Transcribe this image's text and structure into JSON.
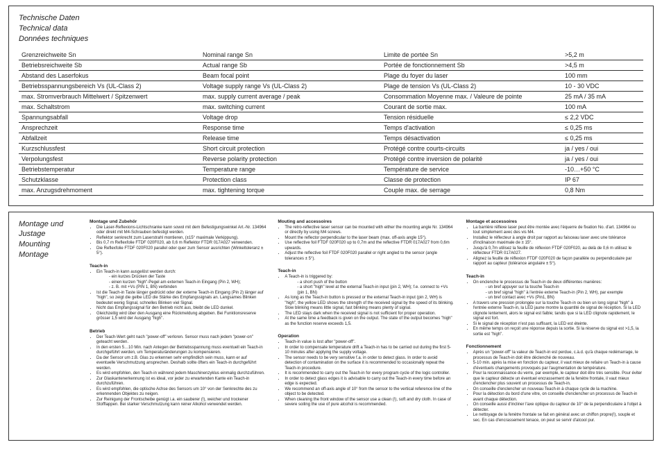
{
  "section1": {
    "heading_de": "Technische Daten",
    "heading_en": "Technical data",
    "heading_fr": "Données techniques",
    "rows": [
      {
        "de": "Grenzreichweite Sn",
        "en": "Nominal range Sn",
        "fr": "Limite de portée Sn",
        "val": ">5,2 m"
      },
      {
        "de": "Betriebsreichweite Sb",
        "en": "Actual range Sb",
        "fr": "Portée de fonctionnement Sb",
        "val": ">4,5 m"
      },
      {
        "de": "Abstand des Laserfokus",
        "en": "Beam focal point",
        "fr": "Plage du foyer du laser",
        "val": "100 mm"
      },
      {
        "de": "Betriebsspannungsbereich Vs (UL-Class 2)",
        "en": "Voltage supply range Vs (UL-Class 2)",
        "fr": "Plage de tension Vs (UL-Class 2)",
        "val": "10 - 30 VDC"
      },
      {
        "de": "max. Stromverbrauch Mittelwert / Spitzenwert",
        "en": "max. supply current average / peak",
        "fr": "Consommation Moyenne max. / Valeure de pointe",
        "val": "25 mA / 35 mA"
      },
      {
        "de": "max. Schaltstrom",
        "en": "max. switching current",
        "fr": "Courant de sortie max.",
        "val": "100 mA"
      },
      {
        "de": "Spannungsabfall",
        "en": "Voltage drop",
        "fr": "Tension résiduelle",
        "val": "≤ 2,2 VDC"
      },
      {
        "de": "Ansprechzeit",
        "en": "Response time",
        "fr": "Temps d'activation",
        "val": "≤ 0,25 ms"
      },
      {
        "de": "Abfallzeit",
        "en": "Release time",
        "fr": "Temps désactivation",
        "val": "≤ 0,25 ms"
      },
      {
        "de": "Kurzschlussfest",
        "en": "Short circuit protection",
        "fr": "Protégé contre courts-circuits",
        "val": "ja / yes / oui"
      },
      {
        "de": "Verpolungsfest",
        "en": "Reverse polarity protection",
        "fr": "Protégé contre inversion de polarité",
        "val": "ja / yes / oui"
      },
      {
        "de": "Betriebstemperatur",
        "en": "Temperature range",
        "fr": "Température de service",
        "val": "-10…+50 °C"
      },
      {
        "de": "Schutzklasse",
        "en": "Protection class",
        "fr": "Classe de protection",
        "val": "IP 67"
      },
      {
        "de": "max. Anzugsdrehmoment",
        "en": "max. tightening torque",
        "fr": "Couple max. de serrage",
        "val": "0,8 Nm"
      }
    ]
  },
  "section2": {
    "heading_de": "Montage und Justage",
    "heading_en": "Mounting",
    "heading_fr": "Montage",
    "de": {
      "b1_title": "Montage und Zubehör",
      "b1": [
        "Die Laser-Reflexions-Lichtschranke kann sowol mit dem Befestigungswinkel Art.-Nr. 134964 oder direkt mit M4-Schrauben befestigt werden.",
        "Reflektor senkrecht zum Laserstrahl montieren, (±15° maximale Verkippung).",
        "Bis 0,7 m Reflexfolie FTDF 020F020, ab 0,6 m Reflektor FTDR 017A027 verwenden.",
        "Die Reflexfolie FTDF 020F020 parallel oder quer zum Sensor ausrichten (Winkeltoleranz ± 5°)."
      ],
      "b2_title": "Teach-in",
      "b2_intro": "Ein Teach-in kann ausgelöst werden durch:",
      "b2_sub": [
        "ein kurzes Drücken der Taste",
        "einen kurzen \"high\"-Pegel am externen Teach-in Eingang (Pin 2, WH);",
        "z. B. mit +Vs (PIN 1, BN) verbinden"
      ],
      "b2_rest": [
        "Ist die Teach-in Taste länger gedrückt oder der externe Teach-in Eingang (Pin 2) länger auf \"high\", so zeigt die gelbe LED die Stärke des Empfangssignals an. Langsames Blinken bedeutet wenig Signal, schnelles Blinken viel Signal.",
        "Nicht das Empfangssignal für den Betrieb nicht aus, bleibt die LED dunkel.",
        "Gleichzeitig wird über den Ausgang eine Rückmeldung abgeben. Bei Funktionsreserve grösser 1,5 wird der Ausgang \"high\"."
      ],
      "b3_title": "Betrieb",
      "b3": [
        "Der Teach-Wert geht nach \"power-off\" verloren. Sensor muss nach jedem \"power-on\" geteacht werden.",
        "In den ersten 5…10 Min. nach Anlegen der Betriebsspannung muss eventuell ein Teach-in durchgeführt werden, um Temperaturänderungen zu kompensieren.",
        "Da der Sensor um z.B. Glas zu erkennen sehr empfindlich sein muss, kann er auf eventuelle Verschmutzung ansprechen. Deshalb sollte öfters ein Teach-in durchgeführt werden.",
        "Es wird empfohlen, den Teach-in während jedem Maschinenzyklus einmalig durchzuführen.",
        "Zur Glaskantenerkennung ist es ideal, vor jeder zu erwartenden Kante ein Teach-in durchzuführen.",
        "Es wird empfohlen, die optische Achse des Sensors um 10° von der Senkrechte des zu erkennenden Objektes zu neigen.",
        "Zur Reinigung der Frontscheibe genügt i.a. ein sauberer (!), weicher und trockener Stofflappen. Bei starker Verschmutzung kann reiner Alkohol verwendet werden."
      ]
    },
    "en": {
      "b1_title": "Mouting and accessoires",
      "b1": [
        "The retro-reflective laser sensor can be mounted with either the mounting angle Nr. 134964 or directly by using M4 screws.",
        "Mount the reflector perpendicular to the laser beam (max. off-axis angle 15°).",
        "Use reflective foil FTDF 020F020 up to 0,7m and the reflective FTDR 017A027 from 0,6m upwards.",
        "Adjust the reflective foil FTDF 020F020 parallel or right angled to the sensor (angle tolerances ± 5°)."
      ],
      "b2_title": "Teach-in",
      "b2_intro": "A Teach-in is triggered by:",
      "b2_sub": [
        "a short push of the button",
        "a short \"high\" level at the external Teach-in input (pin 2, WH); f.e. connect to +Vs (pin 1, BN)"
      ],
      "b2_rest": [
        "As long as the Teach-in button is pressed or the external Teach-in input (pin 2, WH) is \"high\", the yellow LED shows the strength of the received signal by the speed of its blinking. Slow blinking means little signal, fast blinking means plenty of signal.",
        "The LED stays dark when the received signal is not sufficient for proper operation.",
        "At the same time a feedback is given on the output. The state of the output becomes \"high\" as the function reserve exceeds 1,5."
      ],
      "b3_title": "Operation",
      "b3": [
        "Teach-in value is lost after \"power-off\".",
        "In order to compensate temperature drift a Teach-in has to be carried out during the first 5-10 minutes after applying the supply voltage.",
        "The sensor needs to be very sensitive f.a. in order to detect glass. In order to avoid detection of contamination on the surface it is recommended to occasionally repeat the Teach-in procedure.",
        "It is recommended to carry out the Teach-in for every program cycle of the logic controller.",
        "In order to detect glass edges it is advisable to carry out the Teach-in every time before an edge is expected.",
        "We recommend an off-axis angle of 10° from the sensor to the vertical reference line of the object to be detected.",
        "When cleaning the front window of the sensor use a clean (!), soft and dry cloth. In case of severe soiling the use of pure alcohol is recommended."
      ]
    },
    "fr": {
      "b1_title": "Montage et accessoires",
      "b1": [
        "La barrière réflexe laser peut être montée avec l'équerre de fixation No. d'art. 134964 ou tout simplement avec des vis M4.",
        "Installez le réflecteur à angle droit par rapport au faisceau laser avec une tolérance d'inclinaison maximale de ± 15°.",
        "Jusqu'à 0,7m utilisez la feuille de réflexion FTDF 020F020, au delà de 0,6 m utilisez le réflecteur FTDR 017A027.",
        "Alignez la feuille de réflexion FTDF 020F020 de façon parallèle ou perpendiculaire par rapport au capteur (tolérance angulaire ± 5°)."
      ],
      "b2_title": "Teach-in",
      "b2_intro": "On enclenche le processus de Teach-in de deux différentes manières:",
      "b2_sub": [
        "un bref appuyer sur la touche Teach-in",
        "un bref signal \"high\" à l'entrée externe Teach-in (Pin 2, WH), par exemple",
        "un bref contact avec +Vs (Pin1, BN)"
      ],
      "b2_rest": [
        "A travers une pression prolongée sur la touche Teach-in ou bien un long signal \"high\" à l'entrée externe Teach-in, la LED jaune montre la quantité de signal de réception. Si la LED clignote lentement, alors le signal est faible; tandis que si la LED clignote rapidement, le signal est fort.",
        "Si le signal de réception n'est pas suffisant, la LED est éteinte.",
        "En même temps on reçoit une réponse depuis la sortie. Si la réserve du signal est >1,5, la sortie est \"high\"."
      ],
      "b3_title": "Fonctionnement",
      "b3": [
        "Après un \"power-off\" la valeur de Teach-in est perdue, c.à.d. qu'à chaque redémarrage, le processus de Teach-in doit être déclenché de nouveau.",
        "5-10 min. après la mise en fonction du capteur, il vaut mieux de refaire un Teach-in à cause d'éventuels changements provoqués par l'augmentation de température.",
        "Pour la reconnaissance du verre, par exemple, le capteur doit être très sensible. Pour éviter que le capteur détecte un éventuel encrassement de la fenètre frontale, il vaut mieux d'enclencher plus souvent un processus de Teach-in.",
        "On conseille d'enclencher un nouveau Teach-in à chaque cycle de la machine.",
        "Pour la détection du bord d'une vitre, on conseille d'enclencher un processus de Teach-in avant chaque détection.",
        "On conseille aussi d'incliner l'axe optique du capteur de 10° de la perpendiculaire à l'objet à détecter.",
        "Le nettoyage de la fenètre frontale se fait en général avec un chiffon propre(!), souple et sec. En cas d'encrassement tenace, on peut se servir d'alcool pur."
      ]
    }
  }
}
